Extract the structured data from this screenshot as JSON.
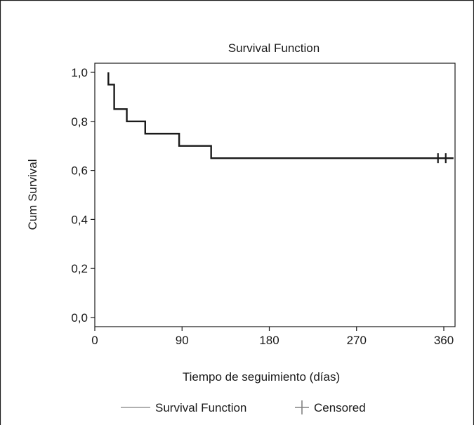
{
  "chart_data": {
    "type": "line",
    "title": "Survival Function",
    "xlabel": "Tiempo de seguimiento (días)",
    "ylabel": "Cum Survival",
    "xlim": [
      0,
      370
    ],
    "ylim": [
      0,
      1.0
    ],
    "x_ticks": [
      0,
      90,
      180,
      270,
      360
    ],
    "x_tick_labels": [
      "0",
      "90",
      "180",
      "270",
      "360"
    ],
    "y_ticks": [
      0,
      0.2,
      0.4,
      0.6,
      0.8,
      1.0
    ],
    "y_tick_labels": [
      "0,0",
      "0,2",
      "0,4",
      "0,6",
      "0,8",
      "1,0"
    ],
    "grid": false,
    "legend_position": "bottom",
    "legend": [
      "Survival Function",
      "Censored"
    ],
    "series": [
      {
        "name": "Survival Function",
        "step_x": [
          14,
          14,
          20,
          33,
          52,
          87,
          120,
          370
        ],
        "step_y": [
          1.0,
          0.95,
          0.85,
          0.8,
          0.75,
          0.7,
          0.65,
          0.65
        ]
      }
    ],
    "censored": [
      {
        "x": 354,
        "y": 0.65
      },
      {
        "x": 362,
        "y": 0.65
      }
    ]
  },
  "colors": {
    "line": "#1a1a1a",
    "legend_line": "#b0b0b0",
    "legend_censored": "#808080",
    "axis": "#1a1a1a",
    "frame": "#1a1a1a"
  }
}
